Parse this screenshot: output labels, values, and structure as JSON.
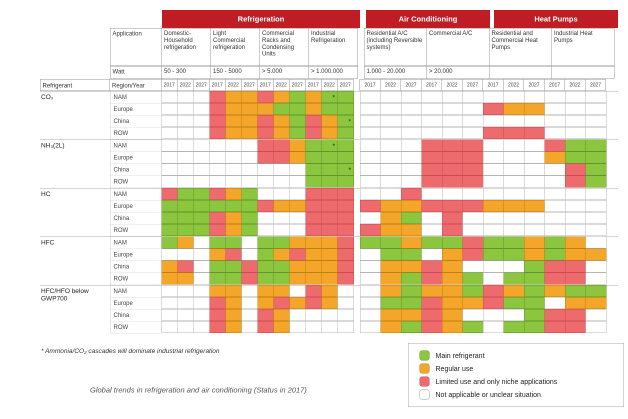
{
  "banners": {
    "refrigeration": "Refrigeration",
    "air_conditioning": "Air Conditioning",
    "heat_pumps": "Heat Pumps"
  },
  "labels": {
    "application": "Application",
    "watt": "Watt",
    "refrigerant": "Refrigerant",
    "region_year": "Region/Year"
  },
  "applications": [
    {
      "section": "refrigeration",
      "name": "Domestic-Household refrigeration",
      "watt": "50 - 300"
    },
    {
      "section": "refrigeration",
      "name": "Light Commercial refrigeration",
      "watt": "150 - 5000"
    },
    {
      "section": "refrigeration",
      "name": "Commercial Racks and Condensing Units",
      "watt": "> 5.000"
    },
    {
      "section": "refrigeration",
      "name": "Industrial Refrigeration",
      "watt": "> 1.000.000"
    },
    {
      "section": "ac",
      "name": "Residential A/C (including Reversible systems)",
      "watt": "1.000 - 20.000"
    },
    {
      "section": "ac",
      "name": "Commercial A/C",
      "watt": "> 20.000"
    },
    {
      "section": "hp",
      "name": "Residential and Commercial Heat Pumps",
      "watt": ""
    },
    {
      "section": "hp",
      "name": "Industrial Heat Pumps",
      "watt": ""
    }
  ],
  "years": [
    "2017",
    "2022",
    "2027"
  ],
  "legend": [
    {
      "code": "g",
      "label": "Main refrigerant"
    },
    {
      "code": "o",
      "label": "Regular use"
    },
    {
      "code": "r",
      "label": "Limited use and only niche applications"
    },
    {
      "code": "w",
      "label": "Not applicable or unclear situation"
    }
  ],
  "footnote": "* Ammonia/CO₂ cascades will dominate industrial refrigeration",
  "caption": "Global trends in refrigeration and air conditioning (Status in 2017)",
  "colors": {
    "main": "#8cc63e",
    "regular": "#f4a62a",
    "limited": "#ed6a6d",
    "not_applicable": "#ffffff",
    "banner": "#bf1d23"
  },
  "chart_data": {
    "type": "heatmap",
    "title": "Global trends in refrigeration and air conditioning (Status in 2017)",
    "legend_codes": {
      "g": "Main refrigerant",
      "o": "Regular use",
      "r": "Limited use and only niche applications",
      "w": "Not applicable or unclear situation"
    },
    "columns": [
      "Domestic-Household refrigeration 2017",
      "Domestic-Household refrigeration 2022",
      "Domestic-Household refrigeration 2027",
      "Light Commercial refrigeration 2017",
      "Light Commercial refrigeration 2022",
      "Light Commercial refrigeration 2027",
      "Commercial Racks and Condensing Units 2017",
      "Commercial Racks and Condensing Units 2022",
      "Commercial Racks and Condensing Units 2027",
      "Industrial Refrigeration 2017",
      "Industrial Refrigeration 2022",
      "Industrial Refrigeration 2027",
      "Residential A/C 2017",
      "Residential A/C 2022",
      "Residential A/C 2027",
      "Commercial A/C 2017",
      "Commercial A/C 2022",
      "Commercial A/C 2027",
      "Residential and Commercial Heat Pumps 2017",
      "Residential and Commercial Heat Pumps 2022",
      "Residential and Commercial Heat Pumps 2027",
      "Industrial Heat Pumps 2017",
      "Industrial Heat Pumps 2022",
      "Industrial Heat Pumps 2027"
    ],
    "rows": [
      {
        "refrigerant": "CO₂",
        "region": "NAM",
        "cells": "wwwroorogoggwwwwwwwwwwww",
        "marks": [
          10
        ]
      },
      {
        "refrigerant": "CO₂",
        "region": "Europe",
        "cells": "wwwroooggoggwwwwwwroowww",
        "marks": []
      },
      {
        "refrigerant": "CO₂",
        "region": "China",
        "cells": "wwwroorogrogwwwwwwwwwwww",
        "marks": [
          11
        ]
      },
      {
        "refrigerant": "CO₂",
        "region": "ROW",
        "cells": "wwwroorogrogwwwwwwrrrwww",
        "marks": []
      },
      {
        "refrigerant": "NH₃(2L)",
        "region": "NAM",
        "cells": "wwwwwwrrogggwwwrrrwwwrgg",
        "marks": [
          10
        ]
      },
      {
        "refrigerant": "NH₃(2L)",
        "region": "Europe",
        "cells": "wwwwwwrrogggwwwrrrwwwogg",
        "marks": []
      },
      {
        "refrigerant": "NH₃(2L)",
        "region": "China",
        "cells": "wwwwwwwwwgggwwwrrrwwwwrg",
        "marks": [
          11
        ]
      },
      {
        "refrigerant": "NH₃(2L)",
        "region": "ROW",
        "cells": "wwwwwwwwwgggwwwrrrwwwwrg",
        "marks": []
      },
      {
        "refrigerant": "HC",
        "region": "NAM",
        "cells": "rggrogwwwrrrwwrwwwwwwwww",
        "marks": []
      },
      {
        "refrigerant": "HC",
        "region": "Europe",
        "cells": "ggggggroorrrroorrrooowww",
        "marks": []
      },
      {
        "refrigerant": "HC",
        "region": "China",
        "cells": "gggrogwwwrrrwogwrwwwwwww",
        "marks": []
      },
      {
        "refrigerant": "HC",
        "region": "ROW",
        "cells": "gggrogwwwrrrroowrwwwwwww",
        "marks": []
      },
      {
        "refrigerant": "HFC",
        "region": "NAM",
        "cells": "gowggwggooorggoggrggogow",
        "marks": []
      },
      {
        "refrigerant": "HFC",
        "region": "Europe",
        "cells": "wwworwgoroorwggworggogoo",
        "marks": []
      },
      {
        "refrigerant": "HFC",
        "region": "China",
        "cells": "orwggrggooorwoorowwwgrrw",
        "marks": []
      },
      {
        "refrigerant": "HFC",
        "region": "ROW",
        "cells": "oowggrggooorwogrogwggrrw",
        "marks": []
      },
      {
        "refrigerant": "HFC/HFO below GWP700",
        "region": "NAM",
        "cells": "wwwoowoowrowwogoogrogogg",
        "marks": []
      },
      {
        "refrigerant": "HFC/HFO below GWP700",
        "region": "Europe",
        "cells": "wwwrowororowwggroorggwoo",
        "marks": []
      },
      {
        "refrigerant": "HFC/HFO below GWP700",
        "region": "China",
        "cells": "wwwrowrowwwwwoorowwwgrrw",
        "marks": []
      },
      {
        "refrigerant": "HFC/HFO below GWP700",
        "region": "ROW",
        "cells": "wwwrowrowwwwwogrogwggrrw",
        "marks": []
      }
    ]
  }
}
